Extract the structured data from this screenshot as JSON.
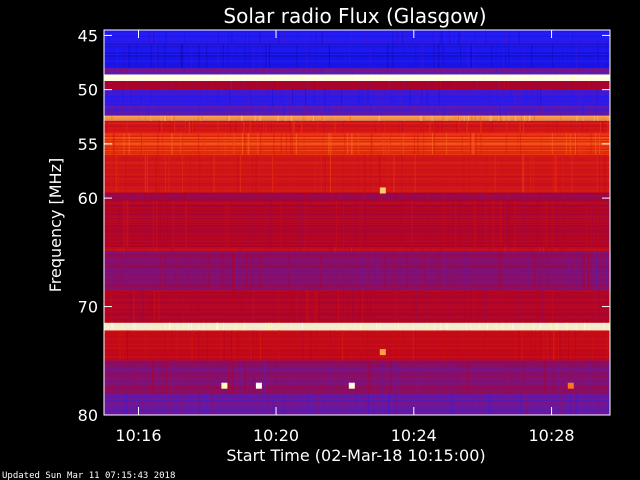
{
  "chart_data": {
    "type": "heatmap",
    "title": "Solar radio Flux (Glasgow)",
    "ylabel_text": "Frequency ",
    "ylabel_unit": "MHz",
    "xlabel": "Start Time (02-Mar-18 10:15:00)",
    "footer": "Updated Sun Mar 11 07:15:43 2018",
    "x_range_minutes": [
      10.25,
      10.495
    ],
    "x_ticks": [
      "10:16",
      "10:20",
      "10:24",
      "10:28"
    ],
    "x_tick_values": [
      10.2667,
      10.3333,
      10.4,
      10.4667
    ],
    "y_range_mhz": [
      44.5,
      80
    ],
    "y_ticks": [
      "45",
      "50",
      "55",
      "60",
      "70",
      "80"
    ],
    "y_tick_values": [
      45,
      50,
      55,
      60,
      70,
      80
    ],
    "colormap": [
      "#000080",
      "#1a1aff",
      "#6a1aa0",
      "#b00020",
      "#e01808",
      "#ff8020",
      "#ffffa0",
      "#ffffff"
    ],
    "bands": [
      {
        "from": 44.5,
        "to": 45.8,
        "level": 0.15
      },
      {
        "from": 45.8,
        "to": 48.0,
        "level": 0.12
      },
      {
        "from": 48.0,
        "to": 48.6,
        "level": 0.3
      },
      {
        "from": 48.6,
        "to": 49.2,
        "level": 0.95
      },
      {
        "from": 49.2,
        "to": 50.0,
        "level": 0.42
      },
      {
        "from": 50.0,
        "to": 51.5,
        "level": 0.18
      },
      {
        "from": 51.5,
        "to": 52.4,
        "level": 0.25
      },
      {
        "from": 52.4,
        "to": 52.9,
        "level": 0.75
      },
      {
        "from": 52.9,
        "to": 54.0,
        "level": 0.55
      },
      {
        "from": 54.0,
        "to": 56.0,
        "level": 0.62
      },
      {
        "from": 56.0,
        "to": 59.5,
        "level": 0.55
      },
      {
        "from": 59.5,
        "to": 60.2,
        "level": 0.4
      },
      {
        "from": 60.2,
        "to": 64.5,
        "level": 0.45
      },
      {
        "from": 64.5,
        "to": 65.0,
        "level": 0.5
      },
      {
        "from": 65.0,
        "to": 68.5,
        "level": 0.35
      },
      {
        "from": 68.5,
        "to": 71.5,
        "level": 0.45
      },
      {
        "from": 71.5,
        "to": 72.2,
        "level": 0.92
      },
      {
        "from": 72.2,
        "to": 75.0,
        "level": 0.5
      },
      {
        "from": 75.0,
        "to": 78.0,
        "level": 0.35
      },
      {
        "from": 78.0,
        "to": 80.0,
        "level": 0.28
      }
    ],
    "bursts": [
      {
        "t": 10.3083,
        "f": 77.3,
        "level": 0.9
      },
      {
        "t": 10.325,
        "f": 77.3,
        "level": 1.0
      },
      {
        "t": 10.37,
        "f": 77.3,
        "level": 0.95
      },
      {
        "t": 10.385,
        "f": 59.3,
        "level": 0.8
      },
      {
        "t": 10.385,
        "f": 74.2,
        "level": 0.75
      },
      {
        "t": 10.476,
        "f": 77.3,
        "level": 0.7
      }
    ]
  }
}
